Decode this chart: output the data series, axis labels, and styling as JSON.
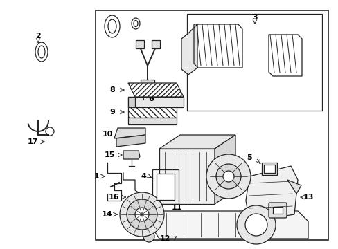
{
  "bg_color": "#ffffff",
  "line_color": "#222222",
  "text_color": "#000000",
  "fig_width": 4.89,
  "fig_height": 3.6,
  "dpi": 100
}
